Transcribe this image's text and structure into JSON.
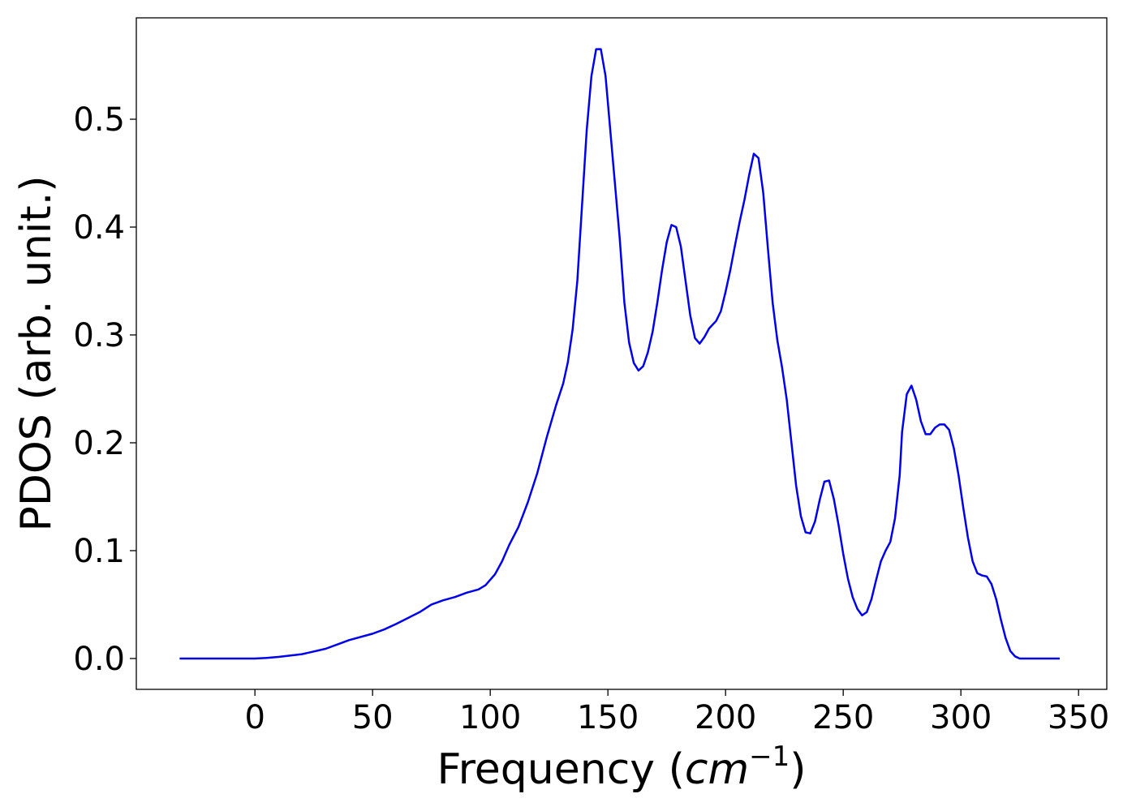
{
  "chart_data": {
    "type": "line",
    "xlabel": [
      "Frequency (",
      "cm",
      "−1",
      ")"
    ],
    "ylabel": "PDOS (arb. unit.)",
    "xlim": [
      -50.4,
      362
    ],
    "ylim": [
      -0.0286,
      0.594
    ],
    "xticks": [
      0,
      50,
      100,
      150,
      200,
      250,
      300,
      350
    ],
    "yticks": [
      {
        "value": 0,
        "label": "0.0"
      },
      0.1,
      0.2,
      0.3,
      0.4,
      0.5
    ],
    "grid": false,
    "x": [
      -32,
      0,
      5,
      10,
      20,
      30,
      35,
      40,
      50,
      55,
      60,
      70,
      75,
      80,
      85,
      90,
      95,
      98,
      102,
      105,
      108,
      112,
      116,
      120,
      124,
      128,
      131,
      133,
      135,
      137,
      139,
      141,
      143,
      145,
      147,
      149,
      151,
      153,
      155,
      157,
      159,
      161,
      163,
      165,
      167,
      169,
      171,
      173,
      175,
      177,
      179,
      181,
      183,
      185,
      187,
      189,
      191,
      193,
      196,
      198,
      200,
      202,
      204,
      206,
      208,
      210,
      212,
      214,
      216,
      218,
      220,
      222,
      224,
      226,
      228,
      230,
      232,
      234,
      236,
      238,
      240,
      242,
      244,
      246,
      248,
      250,
      252,
      254,
      256,
      258,
      260,
      262,
      264,
      266,
      268,
      270,
      272,
      274,
      275,
      277,
      279,
      281,
      283,
      285,
      287,
      289,
      291,
      293,
      295,
      297,
      299,
      301,
      303,
      305,
      307,
      309,
      311,
      313,
      315,
      317,
      319,
      321,
      323,
      325,
      342
    ],
    "series": [
      {
        "name": "PDOS",
        "color": "#0000ee",
        "values": [
          0,
          0,
          0.0005,
          0.0015,
          0.004,
          0.009,
          0.013,
          0.017,
          0.023,
          0.027,
          0.032,
          0.043,
          0.05,
          0.054,
          0.057,
          0.061,
          0.064,
          0.068,
          0.078,
          0.09,
          0.105,
          0.122,
          0.145,
          0.172,
          0.205,
          0.235,
          0.255,
          0.275,
          0.305,
          0.35,
          0.42,
          0.49,
          0.54,
          0.565,
          0.565,
          0.54,
          0.49,
          0.44,
          0.39,
          0.33,
          0.293,
          0.274,
          0.267,
          0.271,
          0.284,
          0.303,
          0.33,
          0.36,
          0.386,
          0.402,
          0.4,
          0.382,
          0.35,
          0.318,
          0.297,
          0.292,
          0.298,
          0.306,
          0.313,
          0.322,
          0.34,
          0.36,
          0.383,
          0.405,
          0.425,
          0.448,
          0.468,
          0.464,
          0.432,
          0.38,
          0.33,
          0.295,
          0.27,
          0.24,
          0.2,
          0.16,
          0.132,
          0.117,
          0.116,
          0.127,
          0.147,
          0.164,
          0.165,
          0.148,
          0.124,
          0.097,
          0.074,
          0.057,
          0.046,
          0.04,
          0.043,
          0.055,
          0.073,
          0.09,
          0.1,
          0.108,
          0.13,
          0.17,
          0.21,
          0.245,
          0.253,
          0.24,
          0.22,
          0.208,
          0.208,
          0.214,
          0.217,
          0.217,
          0.212,
          0.195,
          0.17,
          0.14,
          0.112,
          0.09,
          0.079,
          0.077,
          0.076,
          0.069,
          0.055,
          0.036,
          0.019,
          0.007,
          0.002,
          0,
          0
        ]
      }
    ]
  }
}
